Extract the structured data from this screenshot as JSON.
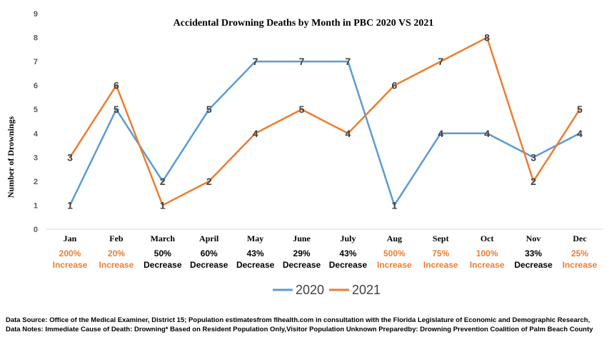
{
  "chart_data": {
    "type": "line",
    "title": "Accidental Drowning Deaths by Month in PBC  2020 VS 2021",
    "xlabel": "",
    "ylabel": "Number of Drownings",
    "ylim": [
      0,
      9
    ],
    "yticks": [
      0,
      1,
      2,
      3,
      4,
      5,
      6,
      7,
      8,
      9
    ],
    "grid": false,
    "legend_position": "bottom",
    "categories": [
      "Jan",
      "Feb",
      "March",
      "April",
      "May",
      "June",
      "July",
      "Aug",
      "Sept",
      "Oct",
      "Nov",
      "Dec"
    ],
    "series": [
      {
        "name": "2020",
        "color": "#5B9BD5",
        "values": [
          1,
          5,
          2,
          5,
          7,
          7,
          7,
          1,
          4,
          4,
          3,
          4
        ]
      },
      {
        "name": "2021",
        "color": "#ED7D31",
        "values": [
          3,
          6,
          1,
          2,
          4,
          5,
          4,
          6,
          7,
          8,
          2,
          5
        ]
      }
    ],
    "changes": [
      {
        "pct": "200%",
        "dir": "Increase"
      },
      {
        "pct": "20%",
        "dir": "Increase"
      },
      {
        "pct": "50%",
        "dir": "Decrease"
      },
      {
        "pct": "60%",
        "dir": "Decrease"
      },
      {
        "pct": "43%",
        "dir": "Decrease"
      },
      {
        "pct": "29%",
        "dir": "Decrease"
      },
      {
        "pct": "43%",
        "dir": "Decrease"
      },
      {
        "pct": "500%",
        "dir": "Increase"
      },
      {
        "pct": "75%",
        "dir": "Increase"
      },
      {
        "pct": "100%",
        "dir": "Increase"
      },
      {
        "pct": "33%",
        "dir": "Decrease"
      },
      {
        "pct": "25%",
        "dir": "Increase"
      }
    ],
    "change_colors": {
      "Increase": "#ED7D31",
      "Decrease": "#000000"
    }
  },
  "footer": {
    "line1": "Data Source: Office of the Medical Examiner, District 15; Population estimatesfrom flhealth.com in consultation with the Florida Legislature of Economic and Demographic Research,",
    "line2": "Data Notes: Immediate Cause of Death: Drowning* Based on Resident Population Only,Visitor Population Unknown Preparedby: Drowning Prevention Coalition of Palm Beach County"
  }
}
